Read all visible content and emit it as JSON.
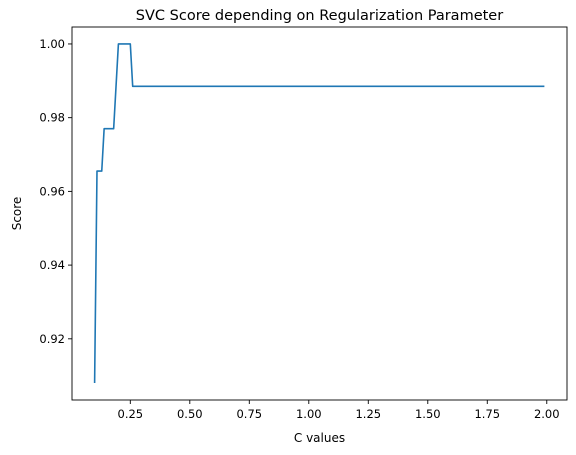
{
  "chart_data": {
    "type": "line",
    "title": "SVC Score depending on Regularization Parameter",
    "xlabel": "C values",
    "ylabel": "Score",
    "xlim": [
      0.005,
      2.085
    ],
    "ylim": [
      0.9034,
      1.0046
    ],
    "xticks": [
      0.25,
      0.5,
      0.75,
      1.0,
      1.25,
      1.5,
      1.75,
      2.0
    ],
    "xtick_labels": [
      "0.25",
      "0.50",
      "0.75",
      "1.00",
      "1.25",
      "1.50",
      "1.75",
      "2.00"
    ],
    "yticks": [
      0.92,
      0.94,
      0.96,
      0.98,
      1.0
    ],
    "ytick_labels": [
      "0.92",
      "0.94",
      "0.96",
      "0.98",
      "1.00"
    ],
    "grid": false,
    "series": [
      {
        "color": "#1f77b4",
        "x": [
          0.1,
          0.11,
          0.12,
          0.13,
          0.14,
          0.15,
          0.16,
          0.17,
          0.18,
          0.19,
          0.2,
          0.21,
          0.22,
          0.23,
          0.24,
          0.25,
          0.26,
          0.27,
          0.5,
          0.75,
          1.0,
          1.25,
          1.5,
          1.75,
          1.99
        ],
        "values": [
          0.908,
          0.9655,
          0.9655,
          0.9655,
          0.977,
          0.977,
          0.977,
          0.977,
          0.977,
          0.9885,
          1.0,
          1.0,
          1.0,
          1.0,
          1.0,
          1.0,
          0.9885,
          0.9885,
          0.9885,
          0.9885,
          0.9885,
          0.9885,
          0.9885,
          0.9885,
          0.9885
        ]
      }
    ]
  }
}
